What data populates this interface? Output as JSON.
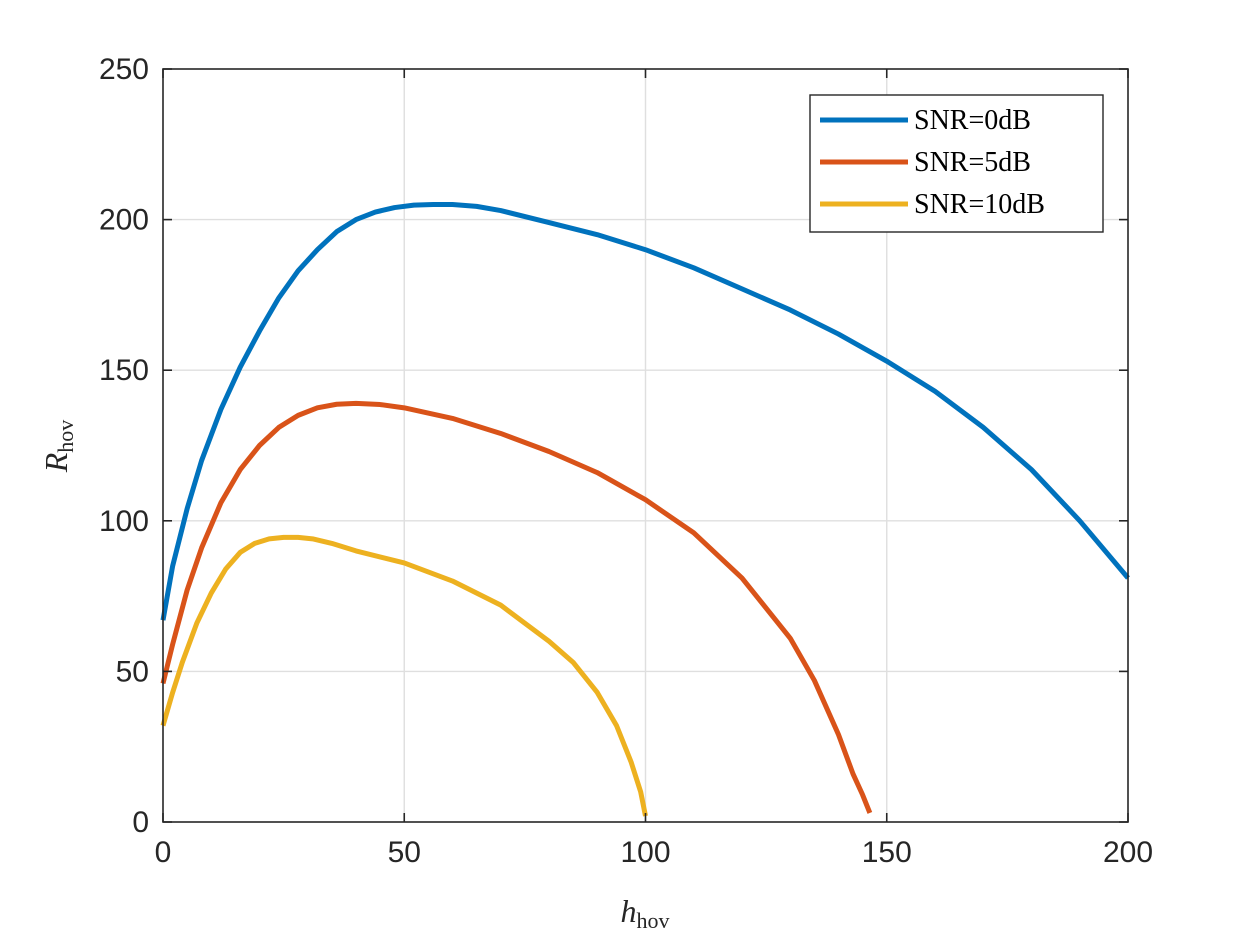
{
  "chart_data": {
    "type": "line",
    "xlabel": "h",
    "xlabel_sub": "hov",
    "ylabel": "R",
    "ylabel_sub": "hov",
    "xlim": [
      0,
      200
    ],
    "ylim": [
      0,
      250
    ],
    "xticks": [
      0,
      50,
      100,
      150,
      200
    ],
    "yticks": [
      0,
      50,
      100,
      150,
      200,
      250
    ],
    "xtick_labels": [
      "0",
      "50",
      "100",
      "150",
      "200"
    ],
    "ytick_labels": [
      "0",
      "50",
      "100",
      "150",
      "200",
      "250"
    ],
    "grid": true,
    "legend_position": "top-right",
    "series": [
      {
        "name": "SNR=0dB",
        "color": "#0072BD",
        "x": [
          0,
          2,
          5,
          8,
          12,
          16,
          20,
          24,
          28,
          32,
          36,
          40,
          44,
          48,
          52,
          56,
          60,
          65,
          70,
          80,
          90,
          100,
          110,
          120,
          130,
          140,
          150,
          160,
          170,
          180,
          190,
          200
        ],
        "y": [
          67,
          85,
          104,
          120,
          137,
          151,
          163,
          174,
          183,
          190,
          196,
          200,
          202.5,
          204,
          204.8,
          205,
          205,
          204.4,
          203,
          199,
          195,
          190,
          184,
          177,
          170,
          162,
          153,
          143,
          131,
          117,
          100,
          81
        ]
      },
      {
        "name": "SNR=5dB",
        "color": "#D95319",
        "x": [
          0,
          2,
          5,
          8,
          12,
          16,
          20,
          24,
          28,
          32,
          36,
          40,
          45,
          50,
          60,
          70,
          80,
          90,
          100,
          110,
          120,
          130,
          135,
          140,
          143,
          145,
          146,
          146.5
        ],
        "y": [
          46,
          59,
          77,
          91,
          106,
          117,
          125,
          131,
          135,
          137.5,
          138.7,
          139,
          138.6,
          137.5,
          134,
          129,
          123,
          116,
          107,
          96,
          81,
          61,
          47,
          29,
          16,
          9,
          5,
          3
        ]
      },
      {
        "name": "SNR=10dB",
        "color": "#EDB120",
        "x": [
          0,
          2,
          4,
          7,
          10,
          13,
          16,
          19,
          22,
          25,
          28,
          31,
          35,
          40,
          50,
          60,
          70,
          80,
          85,
          90,
          94,
          97,
          99,
          100
        ],
        "y": [
          32,
          43,
          53,
          66,
          76,
          84,
          89.5,
          92.5,
          94,
          94.5,
          94.5,
          94,
          92.5,
          90,
          86,
          80,
          72,
          60,
          53,
          43,
          32,
          20,
          10,
          2
        ]
      }
    ]
  }
}
